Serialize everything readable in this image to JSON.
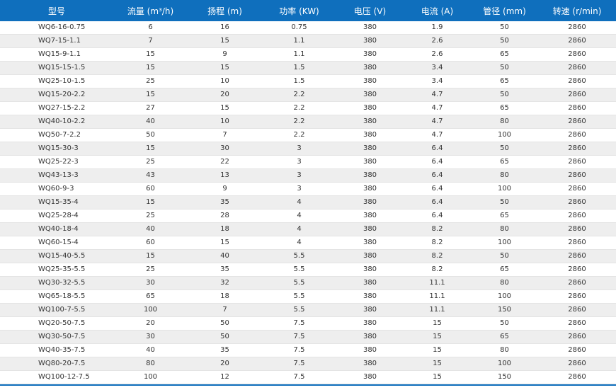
{
  "table": {
    "headers": [
      "型号",
      "流量 (m³/h)",
      "扬程 (m)",
      "功率 (KW)",
      "电压 (V)",
      "电流 (A)",
      "管径 (mm)",
      "转速 (r/min)"
    ],
    "rows": [
      [
        "WQ6-16-0.75",
        "6",
        "16",
        "0.75",
        "380",
        "1.9",
        "50",
        "2860"
      ],
      [
        "WQ7-15-1.1",
        "7",
        "15",
        "1.1",
        "380",
        "2.6",
        "50",
        "2860"
      ],
      [
        "WQ15-9-1.1",
        "15",
        "9",
        "1.1",
        "380",
        "2.6",
        "65",
        "2860"
      ],
      [
        "WQ15-15-1.5",
        "15",
        "15",
        "1.5",
        "380",
        "3.4",
        "50",
        "2860"
      ],
      [
        "WQ25-10-1.5",
        "25",
        "10",
        "1.5",
        "380",
        "3.4",
        "65",
        "2860"
      ],
      [
        "WQ15-20-2.2",
        "15",
        "20",
        "2.2",
        "380",
        "4.7",
        "50",
        "2860"
      ],
      [
        "WQ27-15-2.2",
        "27",
        "15",
        "2.2",
        "380",
        "4.7",
        "65",
        "2860"
      ],
      [
        "WQ40-10-2.2",
        "40",
        "10",
        "2.2",
        "380",
        "4.7",
        "80",
        "2860"
      ],
      [
        "WQ50-7-2.2",
        "50",
        "7",
        "2.2",
        "380",
        "4.7",
        "100",
        "2860"
      ],
      [
        "WQ15-30-3",
        "15",
        "30",
        "3",
        "380",
        "6.4",
        "50",
        "2860"
      ],
      [
        "WQ25-22-3",
        "25",
        "22",
        "3",
        "380",
        "6.4",
        "65",
        "2860"
      ],
      [
        "WQ43-13-3",
        "43",
        "13",
        "3",
        "380",
        "6.4",
        "80",
        "2860"
      ],
      [
        "WQ60-9-3",
        "60",
        "9",
        "3",
        "380",
        "6.4",
        "100",
        "2860"
      ],
      [
        "WQ15-35-4",
        "15",
        "35",
        "4",
        "380",
        "6.4",
        "50",
        "2860"
      ],
      [
        "WQ25-28-4",
        "25",
        "28",
        "4",
        "380",
        "6.4",
        "65",
        "2860"
      ],
      [
        "WQ40-18-4",
        "40",
        "18",
        "4",
        "380",
        "8.2",
        "80",
        "2860"
      ],
      [
        "WQ60-15-4",
        "60",
        "15",
        "4",
        "380",
        "8.2",
        "100",
        "2860"
      ],
      [
        "WQ15-40-5.5",
        "15",
        "40",
        "5.5",
        "380",
        "8.2",
        "50",
        "2860"
      ],
      [
        "WQ25-35-5.5",
        "25",
        "35",
        "5.5",
        "380",
        "8.2",
        "65",
        "2860"
      ],
      [
        "WQ30-32-5.5",
        "30",
        "32",
        "5.5",
        "380",
        "11.1",
        "80",
        "2860"
      ],
      [
        "WQ65-18-5.5",
        "65",
        "18",
        "5.5",
        "380",
        "11.1",
        "100",
        "2860"
      ],
      [
        "WQ100-7-5.5",
        "100",
        "7",
        "5.5",
        "380",
        "11.1",
        "150",
        "2860"
      ],
      [
        "WQ20-50-7.5",
        "20",
        "50",
        "7.5",
        "380",
        "15",
        "50",
        "2860"
      ],
      [
        "WQ30-50-7.5",
        "30",
        "50",
        "7.5",
        "380",
        "15",
        "65",
        "2860"
      ],
      [
        "WQ40-35-7.5",
        "40",
        "35",
        "7.5",
        "380",
        "15",
        "80",
        "2860"
      ],
      [
        "WQ80-20-7.5",
        "80",
        "20",
        "7.5",
        "380",
        "15",
        "100",
        "2860"
      ],
      [
        "WQ100-12-7.5",
        "100",
        "12",
        "7.5",
        "380",
        "15",
        "150",
        "2860"
      ]
    ]
  },
  "colors": {
    "header_bg": "#0f6fbd",
    "header_text": "#ffffff",
    "stripe": "#eeeeee",
    "text": "#333333"
  }
}
